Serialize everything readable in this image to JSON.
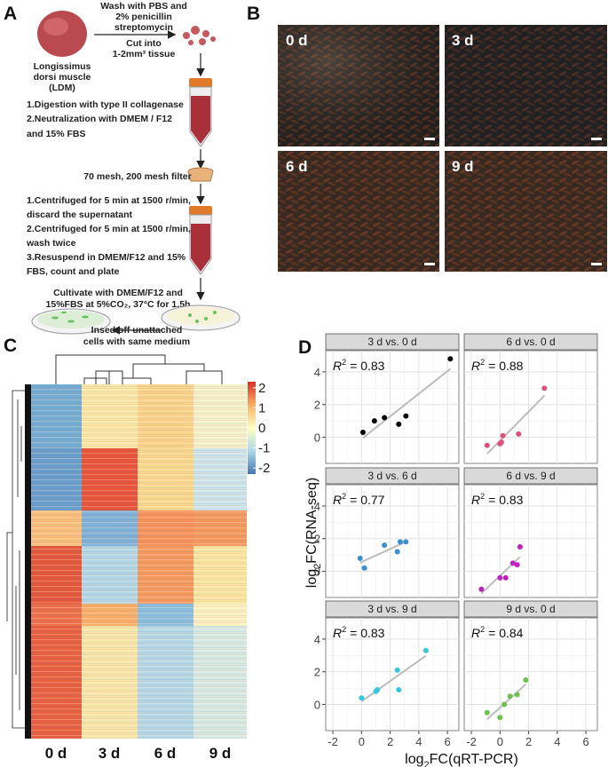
{
  "panel_a": {
    "label": "A",
    "wash": [
      "Wash with PBS and",
      "2% penicillin",
      "streptomycin"
    ],
    "cut": [
      "Cut into",
      "1-2mm³ tissue"
    ],
    "muscle": [
      "Longissimus",
      "dorsi muscle",
      "(LDM)"
    ],
    "digestion": [
      "1.Digestion with type II collagenase",
      "2.Neutralization with DMEM / F12",
      "and 15% FBS"
    ],
    "filter": "70 mesh, 200 mesh filter",
    "centrifuge": [
      "1.Centrifuged for 5 min at 1500 r/min,",
      "discard the supernatant",
      "2.Centrifuged for 5 min at 1500 r/min,",
      "wash twice",
      "3.Resuspend in DMEM/F12 and 15%",
      "FBS, count and plate"
    ],
    "cultivate": [
      "Cultivate with DMEM/F12 and",
      "15%FBS at 5%CO₂, 37°C for 1.5h"
    ],
    "rinse": [
      "Insed off unattached",
      "cells with same medium"
    ]
  },
  "panel_b": {
    "label": "B",
    "images": [
      "0 d",
      "3 d",
      "6 d",
      "9 d"
    ]
  },
  "panel_c": {
    "label": "C",
    "columns": [
      "0 d",
      "3 d",
      "6 d",
      "9 d"
    ],
    "colorbar_lim": [
      -2.3,
      2.3
    ],
    "colorbar_ticks": [
      2,
      1,
      0,
      -1,
      -2
    ]
  },
  "chart_data": {
    "type": "scatter",
    "label": "D",
    "x_label": [
      "log",
      "2",
      "FC(qRT-PCR)"
    ],
    "y_label": [
      "log",
      "2",
      "FC(RNA-seq)"
    ],
    "xlim": [
      -2.5,
      6.8
    ],
    "ylim": [
      -1.6,
      5.3
    ],
    "xticks": [
      -2,
      0,
      2,
      4,
      6
    ],
    "yticks": [
      0,
      2,
      4
    ],
    "grid": true,
    "facets": [
      {
        "title": "3 d vs. 0 d",
        "annotation": [
          "R",
          "2",
          "= 0.83"
        ],
        "color": "#000000",
        "x": [
          0.1,
          0.9,
          1.6,
          2.6,
          3.1,
          6.2
        ],
        "y": [
          0.3,
          1.0,
          1.2,
          0.8,
          1.3,
          4.8
        ]
      },
      {
        "title": "6 d vs. 0 d",
        "annotation": [
          "R",
          "2",
          "= 0.88"
        ],
        "color": "#e0507a",
        "x": [
          -0.9,
          0.0,
          0.1,
          0.2,
          1.3,
          3.1
        ],
        "y": [
          -0.5,
          -0.4,
          -0.3,
          0.1,
          0.2,
          3.0
        ]
      },
      {
        "title": "3 d vs. 6 d",
        "annotation": [
          "R",
          "2",
          "= 0.77"
        ],
        "color": "#3a8fd0",
        "x": [
          -0.1,
          0.2,
          1.6,
          2.5,
          2.7,
          3.1
        ],
        "y": [
          0.8,
          0.2,
          1.6,
          1.2,
          1.8,
          1.8
        ]
      },
      {
        "title": "6 d vs. 9 d",
        "annotation": [
          "R",
          "2",
          "= 0.83"
        ],
        "color": "#c020c0",
        "x": [
          -1.3,
          0.0,
          0.4,
          0.9,
          1.2,
          1.4
        ],
        "y": [
          -1.1,
          -0.4,
          -0.4,
          0.5,
          0.4,
          1.5
        ]
      },
      {
        "title": "3 d vs. 9 d",
        "annotation": [
          "R",
          "2",
          "= 0.83"
        ],
        "color": "#35c6e0",
        "x": [
          0.0,
          1.0,
          1.1,
          2.5,
          2.6,
          4.5
        ],
        "y": [
          0.4,
          0.8,
          0.9,
          2.1,
          0.9,
          3.3
        ]
      },
      {
        "title": "9 d vs. 0 d",
        "annotation": [
          "R",
          "2",
          "= 0.84"
        ],
        "color": "#6cc24a",
        "x": [
          -0.9,
          0.0,
          0.3,
          0.7,
          1.2,
          1.8
        ],
        "y": [
          -0.5,
          -0.8,
          0.0,
          0.5,
          0.6,
          1.5
        ]
      }
    ]
  }
}
